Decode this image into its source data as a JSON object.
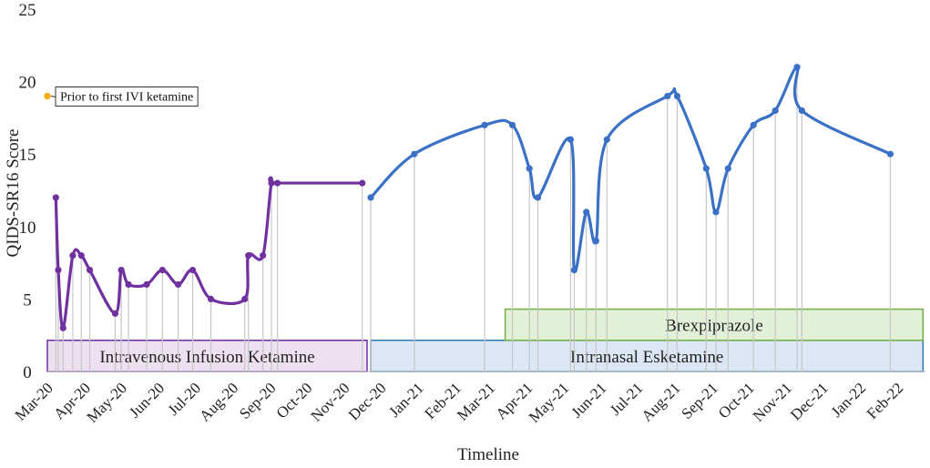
{
  "chart_data": {
    "type": "line",
    "xlabel": "Timeline",
    "ylabel": "QIDS-SR16 Score",
    "ylim": [
      0,
      25
    ],
    "yticks": [
      0,
      5,
      10,
      15,
      20,
      25
    ],
    "xlim": [
      "2020-03-01",
      "2022-02-24"
    ],
    "x_ticks": [
      {
        "date": "2020-03-01",
        "label": "Mar-20"
      },
      {
        "date": "2020-04-01",
        "label": "Apr-20"
      },
      {
        "date": "2020-05-01",
        "label": "May-20"
      },
      {
        "date": "2020-06-01",
        "label": "Jun-20"
      },
      {
        "date": "2020-07-01",
        "label": "Jul-20"
      },
      {
        "date": "2020-08-01",
        "label": "Aug-20"
      },
      {
        "date": "2020-09-01",
        "label": "Sep-20"
      },
      {
        "date": "2020-10-01",
        "label": "Oct-20"
      },
      {
        "date": "2020-11-01",
        "label": "Nov-20"
      },
      {
        "date": "2020-12-01",
        "label": "Dec-20"
      },
      {
        "date": "2021-01-01",
        "label": "Jan-21"
      },
      {
        "date": "2021-02-01",
        "label": "Feb-21"
      },
      {
        "date": "2021-03-01",
        "label": "Mar-21"
      },
      {
        "date": "2021-04-01",
        "label": "Apr-21"
      },
      {
        "date": "2021-05-01",
        "label": "May-21"
      },
      {
        "date": "2021-06-01",
        "label": "Jun-21"
      },
      {
        "date": "2021-07-01",
        "label": "Jul-21"
      },
      {
        "date": "2021-08-01",
        "label": "Aug-21"
      },
      {
        "date": "2021-09-01",
        "label": "Sep-21"
      },
      {
        "date": "2021-10-01",
        "label": "Oct-21"
      },
      {
        "date": "2021-11-01",
        "label": "Nov-21"
      },
      {
        "date": "2021-12-01",
        "label": "Dec-21"
      },
      {
        "date": "2022-01-01",
        "label": "Jan-22"
      },
      {
        "date": "2022-02-01",
        "label": "Feb-22"
      }
    ],
    "baseline_point": {
      "date": "2020-03-01",
      "y": 19,
      "color": "#f2b01e"
    },
    "series": [
      {
        "color": "#7030a0",
        "points": [
          {
            "date": "2020-03-08",
            "y": 12
          },
          {
            "date": "2020-03-10",
            "y": 7
          },
          {
            "date": "2020-03-14",
            "y": 3
          },
          {
            "date": "2020-03-22",
            "y": 8
          },
          {
            "date": "2020-03-29",
            "y": 8
          },
          {
            "date": "2020-04-05",
            "y": 7
          },
          {
            "date": "2020-04-26",
            "y": 4
          },
          {
            "date": "2020-05-01",
            "y": 7
          },
          {
            "date": "2020-05-07",
            "y": 6
          },
          {
            "date": "2020-05-22",
            "y": 6
          },
          {
            "date": "2020-06-04",
            "y": 7
          },
          {
            "date": "2020-06-17",
            "y": 6
          },
          {
            "date": "2020-06-29",
            "y": 7
          },
          {
            "date": "2020-07-14",
            "y": 5
          },
          {
            "date": "2020-08-11",
            "y": 5
          },
          {
            "date": "2020-08-14",
            "y": 8
          },
          {
            "date": "2020-08-26",
            "y": 8
          },
          {
            "date": "2020-09-02",
            "y": 13
          },
          {
            "date": "2020-09-07",
            "y": 13
          },
          {
            "date": "2020-11-16",
            "y": 13
          }
        ]
      },
      {
        "color": "#3a70c6",
        "points": [
          {
            "date": "2020-11-23",
            "y": 12
          },
          {
            "date": "2020-12-29",
            "y": 15
          },
          {
            "date": "2021-02-25",
            "y": 17
          },
          {
            "date": "2021-03-20",
            "y": 17
          },
          {
            "date": "2021-04-03",
            "y": 14
          },
          {
            "date": "2021-04-10",
            "y": 12
          },
          {
            "date": "2021-05-07",
            "y": 16
          },
          {
            "date": "2021-05-10",
            "y": 7
          },
          {
            "date": "2021-05-20",
            "y": 11
          },
          {
            "date": "2021-05-28",
            "y": 9
          },
          {
            "date": "2021-06-06",
            "y": 16
          },
          {
            "date": "2021-07-26",
            "y": 19
          },
          {
            "date": "2021-08-03",
            "y": 19
          },
          {
            "date": "2021-08-27",
            "y": 14
          },
          {
            "date": "2021-09-04",
            "y": 11
          },
          {
            "date": "2021-09-14",
            "y": 14
          },
          {
            "date": "2021-10-05",
            "y": 17
          },
          {
            "date": "2021-10-23",
            "y": 18
          },
          {
            "date": "2021-11-10",
            "y": 21
          },
          {
            "date": "2021-11-14",
            "y": 18
          },
          {
            "date": "2022-01-26",
            "y": 15
          }
        ]
      }
    ],
    "annotations": [
      {
        "text": "Prior to first IVI ketamine",
        "date": "2020-03-01",
        "y": 19
      }
    ],
    "bands": [
      {
        "text": "Intravenous Infusion Ketamine",
        "start": "2020-03-01",
        "end": "2020-11-20",
        "y0": 0,
        "y1": 2.15,
        "fill": "#ede0f0",
        "stroke": "#7030a0"
      },
      {
        "text": "Intranasal Esketamine",
        "start": "2020-11-23",
        "end": "2022-02-22",
        "y0": 0,
        "y1": 2.15,
        "fill": "#dce6f4",
        "stroke": "#2e75b6"
      },
      {
        "text": "Brexpiprazole",
        "start": "2021-03-14",
        "end": "2022-02-22",
        "y0": 2.15,
        "y1": 4.3,
        "fill": "#e3f0d8",
        "stroke": "#70ad47"
      }
    ],
    "grid": false,
    "drop_lines": true
  }
}
